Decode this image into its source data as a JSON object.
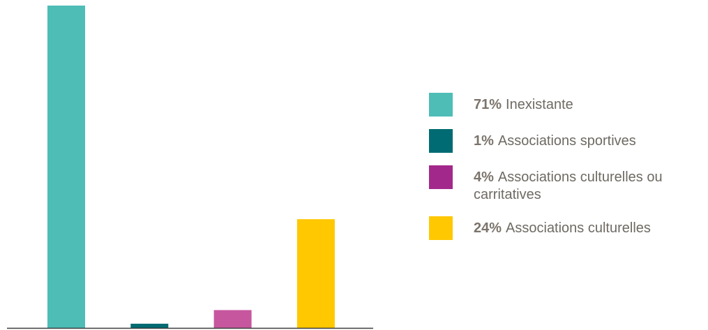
{
  "chart_data": {
    "type": "bar",
    "categories": [
      "Inexistante",
      "Associations sportives",
      "Associations culturelles ou carritatives",
      "Associations culturelles"
    ],
    "values": [
      71,
      1,
      4,
      24
    ],
    "bar_colors": [
      "#4dbdb6",
      "#006b72",
      "#c6579e",
      "#ffc800"
    ],
    "ylim": [
      0,
      71
    ],
    "xlabel": "",
    "ylabel": "",
    "grid": false,
    "legend_position": "right"
  },
  "legend": [
    {
      "pct": "71%",
      "label": "Inexistante",
      "color": "#4dbdb6"
    },
    {
      "pct": "1%",
      "label": "Associations sportives",
      "color": "#006b72"
    },
    {
      "pct": "4%",
      "label": "Associations culturelles ou carritatives",
      "color": "#a3288c"
    },
    {
      "pct": "24%",
      "label": "Associations culturelles",
      "color": "#ffc800"
    }
  ]
}
